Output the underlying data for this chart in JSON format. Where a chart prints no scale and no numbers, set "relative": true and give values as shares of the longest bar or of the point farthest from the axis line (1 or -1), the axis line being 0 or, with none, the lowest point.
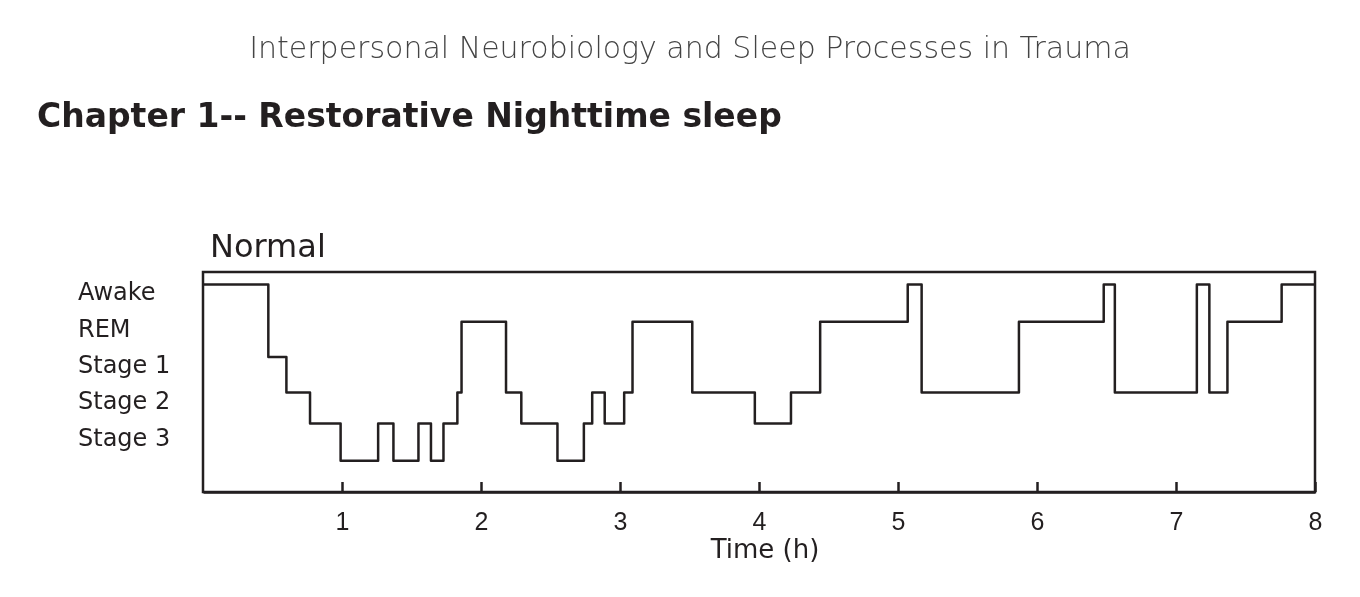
{
  "chart_data": {
    "type": "step",
    "title": "Interpersonal Neurobiology and Sleep Processes in Trauma",
    "subtitle": "Chapter 1-- Restorative Nighttime sleep",
    "annotations": [
      "Normal",
      "Awake",
      "REM",
      "Stage 1",
      "Stage 2",
      "Stage 3"
    ],
    "relative": true,
    "xlabel": "Time (h)",
    "x": [
      0,
      0.47,
      0.6,
      0.77,
      0.99,
      1.26,
      1.37,
      1.55,
      1.64,
      1.73,
      1.83,
      1.86,
      2.18,
      2.29,
      2.55,
      2.74,
      2.8,
      2.89,
      3.03,
      3.09,
      3.52,
      3.97,
      4.23,
      4.44,
      5.07,
      5.17,
      5.87,
      6.48,
      6.56,
      7.15,
      7.24,
      7.37,
      7.76,
      8
    ],
    "series": [
      {
        "color": "#231f20",
        "values": [
          1,
          0.65,
          0.48,
          0.33,
          0.15,
          0.33,
          0.15,
          0.33,
          0.15,
          0.33,
          0.48,
          0.82,
          0.48,
          0.33,
          0.15,
          0.33,
          0.48,
          0.33,
          0.48,
          0.82,
          0.48,
          0.33,
          0.48,
          0.82,
          1,
          0.48,
          0.82,
          1,
          0.48,
          1,
          0.48,
          0.82,
          1,
          1
        ]
      }
    ],
    "xlim": [
      0,
      8
    ],
    "xticks": [
      1,
      2,
      3,
      4,
      5,
      6,
      7,
      8
    ],
    "grid": false,
    "marker": "none",
    "line_style": "solid"
  }
}
